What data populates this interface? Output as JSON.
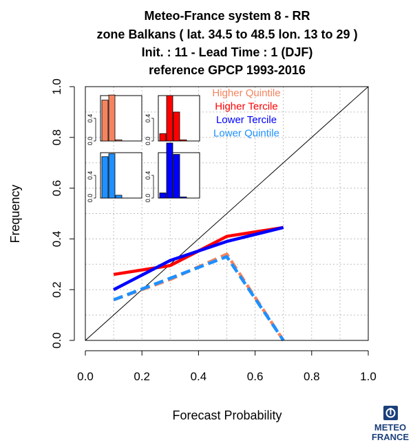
{
  "chart_data": {
    "type": "line",
    "title_lines": [
      "Meteo-France system 8  -  RR",
      "zone Balkans ( lat. 34.5 to 48.5    lon. 13 to 29 )",
      "Init. : 11  - Lead Time : 1 (DJF)",
      "reference GPCP 1993-2016"
    ],
    "xlabel": "Forecast Probability",
    "ylabel": "Frequency",
    "xlim": [
      0,
      1
    ],
    "ylim": [
      0,
      1
    ],
    "x_ticks": [
      "0.0",
      "0.2",
      "0.4",
      "0.6",
      "0.8",
      "1.0"
    ],
    "y_ticks": [
      "0.0",
      "0.2",
      "0.4",
      "0.6",
      "0.8",
      "1.0"
    ],
    "grid": true,
    "diagonal_reference": true,
    "series": [
      {
        "name": "Higher Quintile",
        "color": "#F4845F",
        "dash": true,
        "x": [
          0.1,
          0.3,
          0.5,
          0.7
        ],
        "y": [
          0.16,
          0.24,
          0.34,
          0.0
        ]
      },
      {
        "name": "Higher Tercile",
        "color": "#FF0000",
        "dash": false,
        "x": [
          0.1,
          0.3,
          0.5,
          0.7
        ],
        "y": [
          0.26,
          0.295,
          0.41,
          0.445
        ]
      },
      {
        "name": "Lower Tercile",
        "color": "#0000FF",
        "dash": false,
        "x": [
          0.1,
          0.3,
          0.5,
          0.7
        ],
        "y": [
          0.2,
          0.315,
          0.39,
          0.445
        ]
      },
      {
        "name": "Lower Quintile",
        "color": "#1E90FF",
        "dash": true,
        "x": [
          0.1,
          0.3,
          0.5,
          0.7
        ],
        "y": [
          0.16,
          0.245,
          0.33,
          0.0
        ]
      }
    ],
    "legend_position": "top-right",
    "insets": [
      {
        "series": "Higher Quintile",
        "color": "#F4845F",
        "y_ticks": [
          "0.0",
          "0.4"
        ],
        "ylim": [
          0,
          0.8
        ],
        "values": [
          0.72,
          0.81,
          0.02,
          0.0
        ]
      },
      {
        "series": "Higher Tercile",
        "color": "#FF0000",
        "y_ticks": [
          "0.0",
          "0.4"
        ],
        "ylim": [
          0,
          0.8
        ],
        "values": [
          0.13,
          0.8,
          0.51,
          0.02
        ]
      },
      {
        "series": "Lower Quintile",
        "color": "#1E90FF",
        "y_ticks": [
          "0.0",
          "0.4"
        ],
        "ylim": [
          0,
          0.8
        ],
        "values": [
          0.73,
          0.78,
          0.05,
          0.0
        ]
      },
      {
        "series": "Lower Tercile",
        "color": "#0000FF",
        "y_ticks": [
          "0.0",
          "0.4"
        ],
        "ylim": [
          0,
          0.8
        ],
        "values": [
          0.09,
          0.97,
          0.77,
          0.02
        ]
      }
    ]
  },
  "logo": {
    "line1": "METEO",
    "line2": "FRANCE",
    "color": "#1a3f7a"
  }
}
